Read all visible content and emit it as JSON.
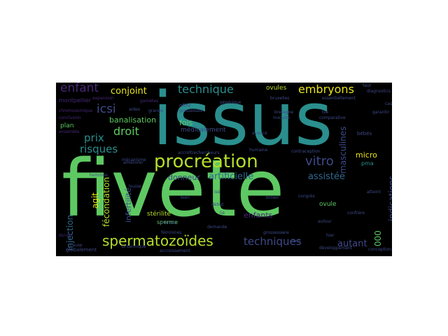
{
  "palette": {
    "teal": "#2a8f8e",
    "green": "#5ec962",
    "lime": "#b5de2b",
    "yellow": "#e7e419",
    "purple": "#3e4a89",
    "deep_purple": "#482878",
    "blue": "#31688e",
    "dim": "#3b2a5e"
  },
  "words": [
    {
      "text": "fivete"
    },
    {
      "text": "issus"
    },
    {
      "text": "procréation"
    },
    {
      "text": "spermatozoïdes"
    },
    {
      "text": "embryons"
    },
    {
      "text": "technique"
    },
    {
      "text": "enfant"
    },
    {
      "text": "conjoint"
    },
    {
      "text": "droit"
    },
    {
      "text": "icsi"
    },
    {
      "text": "vitro"
    },
    {
      "text": "artificielle"
    },
    {
      "text": "assistée"
    },
    {
      "text": "techniques"
    },
    {
      "text": "autant"
    },
    {
      "text": "risques"
    },
    {
      "text": "prix"
    },
    {
      "text": "banalisation"
    },
    {
      "text": "fois"
    },
    {
      "text": "donneur"
    },
    {
      "text": "enfants"
    },
    {
      "text": "micro"
    },
    {
      "text": "masculines"
    },
    {
      "text": "indications"
    },
    {
      "text": "ovule"
    },
    {
      "text": "injection"
    },
    {
      "text": "fécondation"
    },
    {
      "text": "infertilité"
    },
    {
      "text": "agit"
    },
    {
      "text": "ovules"
    },
    {
      "text": "stérilité"
    },
    {
      "text": "sperme"
    },
    {
      "text": "médicalement"
    },
    {
      "text": "montpellier"
    },
    {
      "text": "plan"
    },
    {
      "text": "pma"
    },
    {
      "text": "000"
    },
    {
      "text": "bébés"
    },
    {
      "text": "craintes"
    },
    {
      "text": "féminines"
    },
    {
      "text": "globalement"
    },
    {
      "text": "cause"
    },
    {
      "text": "développement"
    },
    {
      "text": "conception"
    },
    {
      "text": "essentiellement"
    },
    {
      "text": "chromosomique"
    },
    {
      "text": "conclusion"
    },
    {
      "text": "grande"
    },
    {
      "text": "aides"
    },
    {
      "text": "offrir"
    },
    {
      "text": "grossesses"
    },
    {
      "text": "bretagne"
    },
    {
      "text": "inocuité"
    },
    {
      "text": "contraception"
    },
    {
      "text": "avancé"
    },
    {
      "text": "humaine"
    },
    {
      "text": "accroîtrechercheurs"
    },
    {
      "text": "accroissement"
    },
    {
      "text": "britannique"
    },
    {
      "text": "faut"
    },
    {
      "text": "diagnostics"
    },
    {
      "text": "garantir"
    },
    {
      "text": "comparative"
    },
    {
      "text": "générique"
    },
    {
      "text": "expansion"
    },
    {
      "text": "gamètes"
    },
    {
      "text": "bruxelles"
    },
    {
      "text": "brown"
    },
    {
      "text": "congrès"
    },
    {
      "text": "confrère"
    },
    {
      "text": "autour"
    },
    {
      "text": "hier"
    },
    {
      "text": "demande"
    },
    {
      "text": "bien"
    },
    {
      "text": "début"
    },
    {
      "text": "hommes"
    },
    {
      "text": "ensemble"
    },
    {
      "text": "durant"
    },
    {
      "text": "améliorer"
    },
    {
      "text": "mécanisme"
    },
    {
      "text": "louise"
    },
    {
      "text": "cas"
    },
    {
      "text": "lié"
    },
    {
      "text": "isé"
    },
    {
      "text": "tse"
    },
    {
      "text": "atteint"
    },
    {
      "text": "grossesse"
    },
    {
      "text": "vie"
    },
    {
      "text": "dont"
    }
  ]
}
